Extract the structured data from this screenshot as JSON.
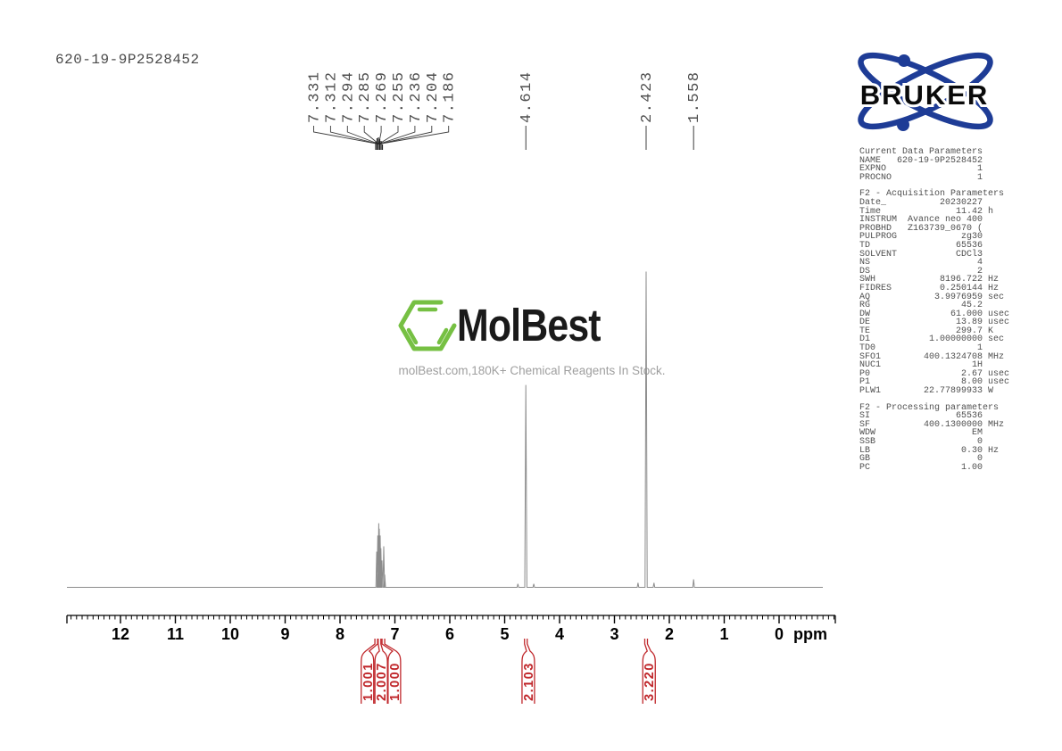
{
  "page": {
    "sample_id": "620-19-9P2528452"
  },
  "watermark": {
    "brand": "MolBest",
    "tagline": "molBest.com,180K+ Chemical Reagents In Stock.",
    "green": "#76c043"
  },
  "bruker_logo": {
    "label": "BRUKER",
    "blue": "#1e3c96"
  },
  "parameters_panel": {
    "sections": [
      {
        "heading": "Current Data Parameters",
        "lines": [
          "NAME   620-19-9P2528452",
          "EXPNO                 1",
          "PROCNO                1"
        ]
      },
      {
        "heading": "F2 - Acquisition Parameters",
        "lines": [
          "Date_          20230227",
          "Time              11.42 h",
          "INSTRUM  Avance neo 400",
          "PROBHD   Z163739_0670 (",
          "PULPROG            zg30",
          "TD                65536",
          "SOLVENT           CDCl3",
          "NS                    4",
          "DS                    2",
          "SWH            8196.722 Hz",
          "FIDRES         0.250144 Hz",
          "AQ            3.9976959 sec",
          "RG                 45.2",
          "DW               61.000 usec",
          "DE                13.89 usec",
          "TE                299.7 K",
          "D1           1.00000000 sec",
          "TD0                   1",
          "SFO1        400.1324708 MHz",
          "NUC1                 1H",
          "P0                 2.67 usec",
          "P1                 8.00 usec",
          "PLW1        22.77899933 W"
        ]
      },
      {
        "heading": "F2 - Processing parameters",
        "lines": [
          "SI                65536",
          "SF          400.1300000 MHz",
          "WDW                  EM",
          "SSB                   0",
          "LB                 0.30 Hz",
          "GB                    0",
          "PC                 1.00"
        ]
      }
    ]
  },
  "chart_data": {
    "type": "line",
    "title": "1H NMR spectrum 620-19-9P2528452",
    "xlabel": "ppm",
    "x_axis": {
      "min": -1.0,
      "max": 13.0,
      "inverted": true,
      "major_ticks": [
        12,
        11,
        10,
        9,
        8,
        7,
        6,
        5,
        4,
        3,
        2,
        1,
        0
      ],
      "minor_step": 0.1,
      "unit_label": "ppm"
    },
    "peak_labels": {
      "multiplet": [
        "7.331",
        "7.312",
        "7.294",
        "7.285",
        "7.269",
        "7.255",
        "7.236",
        "7.204",
        "7.186"
      ],
      "singlets": [
        "4.614",
        "2.423",
        "1.558"
      ]
    },
    "peaks": [
      {
        "ppm": 7.331,
        "rel": 0.113
      },
      {
        "ppm": 7.312,
        "rel": 0.164
      },
      {
        "ppm": 7.294,
        "rel": 0.203
      },
      {
        "ppm": 7.285,
        "rel": 0.186
      },
      {
        "ppm": 7.269,
        "rel": 0.164
      },
      {
        "ppm": 7.255,
        "rel": 0.124
      },
      {
        "ppm": 7.236,
        "rel": 0.085
      },
      {
        "ppm": 7.204,
        "rel": 0.13
      },
      {
        "ppm": 7.186,
        "rel": 0.04
      },
      {
        "ppm": 4.76,
        "rel": 0.011
      },
      {
        "ppm": 4.614,
        "rel": 0.641
      },
      {
        "ppm": 4.47,
        "rel": 0.011
      },
      {
        "ppm": 2.57,
        "rel": 0.014
      },
      {
        "ppm": 2.423,
        "rel": 1.0
      },
      {
        "ppm": 2.28,
        "rel": 0.014
      },
      {
        "ppm": 1.558,
        "rel": 0.025
      }
    ],
    "integrals": [
      {
        "value": "1.001",
        "label_ppm": 7.5,
        "peak_ppm": 7.34
      },
      {
        "value": "2.007",
        "label_ppm": 7.25,
        "peak_ppm": 7.28
      },
      {
        "value": "1.000",
        "label_ppm": 7.01,
        "peak_ppm": 7.21
      },
      {
        "value": "2.103",
        "label_ppm": 4.57,
        "peak_ppm": 4.614
      },
      {
        "value": "3.220",
        "label_ppm": 2.37,
        "peak_ppm": 2.423
      }
    ],
    "trace_color": "#8c8c8c",
    "integral_color": "#c0272b",
    "label_color": "#4d4d4d"
  }
}
